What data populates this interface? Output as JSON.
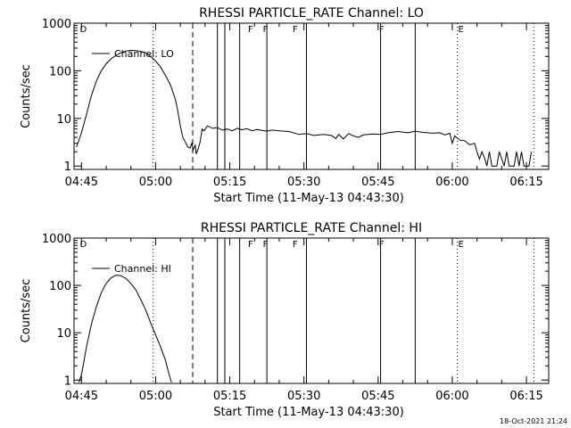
{
  "footer": {
    "timestamp": "18-Oct-2021 21:24"
  },
  "chart_data": [
    {
      "type": "line",
      "title": "RHESSI PARTICLE_RATE Channel: LO",
      "xlabel": "Start Time (11-May-13 04:43:30)",
      "ylabel": "Counts/sec",
      "yscale": "log",
      "ylim": [
        0.85,
        1000
      ],
      "xlim_minutes": [
        -1.5,
        94.5
      ],
      "xticks": [
        {
          "t": 0,
          "label": "04:45"
        },
        {
          "t": 15,
          "label": "05:00"
        },
        {
          "t": 30,
          "label": "05:15"
        },
        {
          "t": 45,
          "label": "05:30"
        },
        {
          "t": 60,
          "label": "05:45"
        },
        {
          "t": 75,
          "label": "06:00"
        },
        {
          "t": 90,
          "label": "06:15"
        }
      ],
      "yticks": [
        {
          "v": 1,
          "label": "1"
        },
        {
          "v": 10,
          "label": "10"
        },
        {
          "v": 100,
          "label": "100"
        },
        {
          "v": 1000,
          "label": "1000"
        }
      ],
      "legend": {
        "label": "Channel: LO",
        "position": "top-left"
      },
      "annotations": [
        {
          "t": -0.5,
          "letter": "D"
        },
        {
          "t": 33.5,
          "letter": "F"
        },
        {
          "t": 36.5,
          "letter": "F"
        },
        {
          "t": 42.5,
          "letter": "F"
        },
        {
          "t": 60,
          "letter": "F"
        },
        {
          "t": 76,
          "letter": "E"
        }
      ],
      "markers": {
        "dotted": [
          14.5,
          76,
          91.5
        ],
        "dashed": [
          22.5
        ],
        "solid": [
          27.5,
          29,
          32,
          37.5,
          45.5,
          60.5,
          67.5
        ]
      },
      "series": [
        {
          "name": "LO",
          "points": [
            [
              -1,
              2.5
            ],
            [
              0,
              5
            ],
            [
              1,
              12
            ],
            [
              2,
              30
            ],
            [
              3,
              60
            ],
            [
              4,
              100
            ],
            [
              5,
              140
            ],
            [
              6,
              180
            ],
            [
              7,
              210
            ],
            [
              8,
              240
            ],
            [
              9,
              260
            ],
            [
              10,
              268
            ],
            [
              11,
              265
            ],
            [
              12,
              255
            ],
            [
              13,
              240
            ],
            [
              14,
              200
            ],
            [
              15,
              160
            ],
            [
              16,
              120
            ],
            [
              17,
              80
            ],
            [
              18,
              50
            ],
            [
              19,
              25
            ],
            [
              19.5,
              14
            ],
            [
              20,
              7
            ],
            [
              20.5,
              4
            ],
            [
              21,
              3.2
            ],
            [
              21.5,
              2.5
            ],
            [
              22,
              2.4
            ],
            [
              22.3,
              3.0
            ],
            [
              22.6,
              2.2
            ],
            [
              23,
              2.8
            ],
            [
              23.2,
              1.8
            ],
            [
              23.6,
              2.3
            ],
            [
              24,
              3.2
            ],
            [
              24.4,
              6.0
            ],
            [
              24.8,
              5.5
            ],
            [
              25.5,
              7.0
            ],
            [
              26.5,
              6.2
            ],
            [
              27.5,
              6.4
            ],
            [
              28.5,
              5.7
            ],
            [
              29.5,
              6.0
            ],
            [
              30.5,
              5.5
            ],
            [
              31.5,
              6.2
            ],
            [
              32.5,
              5.8
            ],
            [
              33.5,
              6.1
            ],
            [
              34.5,
              5.5
            ],
            [
              35.5,
              5.9
            ],
            [
              36.5,
              5.6
            ],
            [
              37.5,
              5.4
            ],
            [
              38.5,
              5.7
            ],
            [
              40,
              5.5
            ],
            [
              42,
              5.3
            ],
            [
              44,
              4.6
            ],
            [
              45.5,
              4.8
            ],
            [
              47,
              4.4
            ],
            [
              49,
              4.6
            ],
            [
              50.5,
              4.4
            ],
            [
              51.5,
              3.8
            ],
            [
              52,
              4.6
            ],
            [
              53,
              3.7
            ],
            [
              54,
              4.8
            ],
            [
              55,
              4.3
            ],
            [
              56,
              4.0
            ],
            [
              57,
              4.5
            ],
            [
              59,
              4.7
            ],
            [
              60.5,
              4.6
            ],
            [
              62,
              5.0
            ],
            [
              64,
              5.3
            ],
            [
              66,
              5.0
            ],
            [
              67.5,
              5.4
            ],
            [
              69,
              5.1
            ],
            [
              71,
              4.9
            ],
            [
              72.5,
              5.0
            ],
            [
              73.5,
              4.5
            ],
            [
              74.5,
              4.9
            ],
            [
              75,
              3.0
            ],
            [
              75.5,
              4.3
            ],
            [
              76.5,
              3.5
            ],
            [
              77.5,
              3.4
            ],
            [
              78.5,
              2.8
            ],
            [
              79.5,
              3.0
            ],
            [
              80,
              2.0
            ],
            [
              80.5,
              1.4
            ],
            [
              81,
              2.0
            ],
            [
              81.5,
              1.5
            ],
            [
              82,
              1.0
            ],
            [
              82.5,
              2.0
            ],
            [
              83,
              1.0
            ],
            [
              84,
              1.0
            ],
            [
              84.5,
              2.0
            ],
            [
              85.5,
              1.0
            ],
            [
              86,
              2.0
            ],
            [
              86.5,
              1.0
            ],
            [
              87.5,
              1.0
            ],
            [
              88,
              2.0
            ],
            [
              88.5,
              1.0
            ],
            [
              89,
              2.0
            ],
            [
              89.5,
              1.0
            ],
            [
              90.5,
              1.0
            ],
            [
              91,
              2.0
            ]
          ]
        }
      ]
    },
    {
      "type": "line",
      "title": "RHESSI PARTICLE_RATE Channel: HI",
      "xlabel": "Start Time (11-May-13 04:43:30)",
      "ylabel": "Counts/sec",
      "yscale": "log",
      "ylim": [
        0.85,
        1000
      ],
      "xlim_minutes": [
        -1.5,
        94.5
      ],
      "xticks": [
        {
          "t": 0,
          "label": "04:45"
        },
        {
          "t": 15,
          "label": "05:00"
        },
        {
          "t": 30,
          "label": "05:15"
        },
        {
          "t": 45,
          "label": "05:30"
        },
        {
          "t": 60,
          "label": "05:45"
        },
        {
          "t": 75,
          "label": "06:00"
        },
        {
          "t": 90,
          "label": "06:15"
        }
      ],
      "yticks": [
        {
          "v": 1,
          "label": "1"
        },
        {
          "v": 10,
          "label": "10"
        },
        {
          "v": 100,
          "label": "100"
        },
        {
          "v": 1000,
          "label": "1000"
        }
      ],
      "legend": {
        "label": "Channel: HI",
        "position": "top-left"
      },
      "annotations": [
        {
          "t": -0.5,
          "letter": "D"
        },
        {
          "t": 33.5,
          "letter": "F"
        },
        {
          "t": 36.5,
          "letter": "F"
        },
        {
          "t": 42.5,
          "letter": "F"
        },
        {
          "t": 60,
          "letter": "F"
        },
        {
          "t": 76,
          "letter": "E"
        }
      ],
      "markers": {
        "dotted": [
          14.5,
          76,
          91.5
        ],
        "dashed": [
          22.5
        ],
        "solid": [
          27.5,
          29,
          32,
          37.5,
          45.5,
          60.5,
          67.5
        ]
      },
      "series": [
        {
          "name": "HI",
          "points": [
            [
              -0.5,
              0.9
            ],
            [
              0,
              1.3
            ],
            [
              0.5,
              2.5
            ],
            [
              1,
              5
            ],
            [
              2,
              15
            ],
            [
              3,
              35
            ],
            [
              4,
              70
            ],
            [
              5,
              110
            ],
            [
              6,
              145
            ],
            [
              7,
              165
            ],
            [
              8,
              160
            ],
            [
              9,
              140
            ],
            [
              10,
              110
            ],
            [
              11,
              80
            ],
            [
              12,
              50
            ],
            [
              13,
              30
            ],
            [
              14,
              16
            ],
            [
              15,
              9
            ],
            [
              16,
              5
            ],
            [
              17,
              2.6
            ],
            [
              17.5,
              1.6
            ],
            [
              18,
              1.05
            ],
            [
              18.2,
              0.9
            ]
          ]
        }
      ]
    }
  ]
}
